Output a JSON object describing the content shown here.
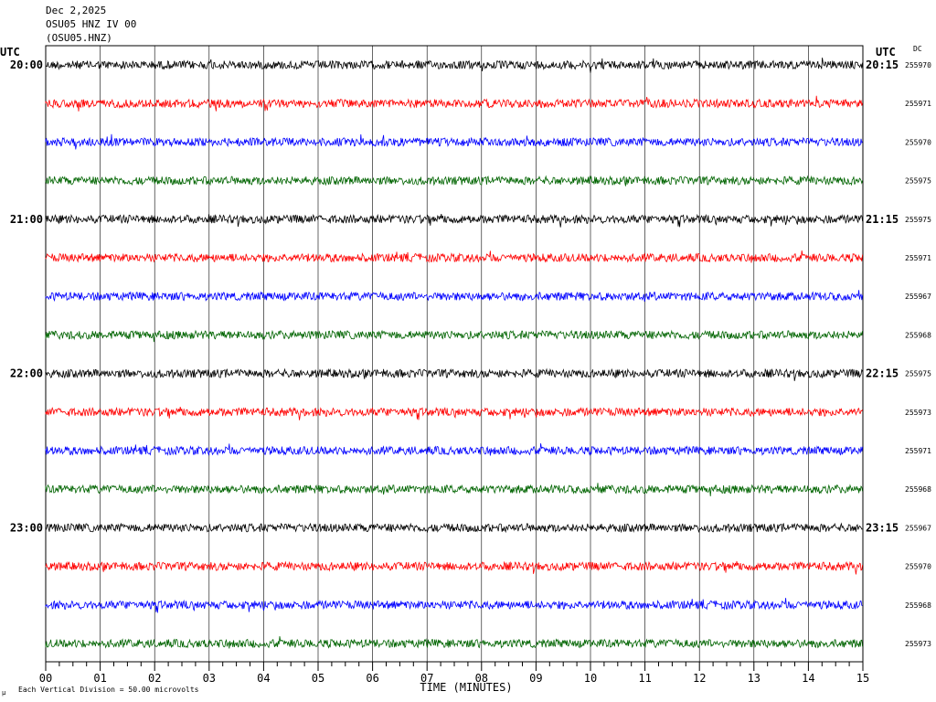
{
  "header": {
    "date": "Dec 2,2025",
    "station": "OSU05 HNZ IV 00",
    "channel": "(OSU05.HNZ)"
  },
  "chart_data": {
    "type": "line",
    "title": "",
    "xlabel": "TIME (MINUTES)",
    "ylabel": "",
    "xlim": [
      0,
      15
    ],
    "x_ticks": [
      "00",
      "01",
      "02",
      "03",
      "04",
      "05",
      "06",
      "07",
      "08",
      "09",
      "10",
      "11",
      "12",
      "13",
      "14",
      "15"
    ],
    "left_axis_label": "UTC",
    "right_axis_label": "UTC",
    "dc_label": "DC",
    "trace_colors": [
      "#000000",
      "#ff0000",
      "#0000ff",
      "#006400"
    ],
    "hour_labels_left": [
      {
        "row": 0,
        "text": "20:00"
      },
      {
        "row": 4,
        "text": "21:00"
      },
      {
        "row": 8,
        "text": "22:00"
      },
      {
        "row": 12,
        "text": "23:00"
      }
    ],
    "hour_labels_right": [
      {
        "row": 0,
        "text": "20:15"
      },
      {
        "row": 4,
        "text": "21:15"
      },
      {
        "row": 8,
        "text": "22:15"
      },
      {
        "row": 12,
        "text": "23:15"
      }
    ],
    "dc_offsets": [
      "255970",
      "255971",
      "255970",
      "255975",
      "255975",
      "255971",
      "255967",
      "255968",
      "255975",
      "255973",
      "255971",
      "255968",
      "255967",
      "255970",
      "255968",
      "255973"
    ],
    "footer_note": "Each Vertical Division =   50.00 microvolts",
    "footer_mark": "µ"
  }
}
